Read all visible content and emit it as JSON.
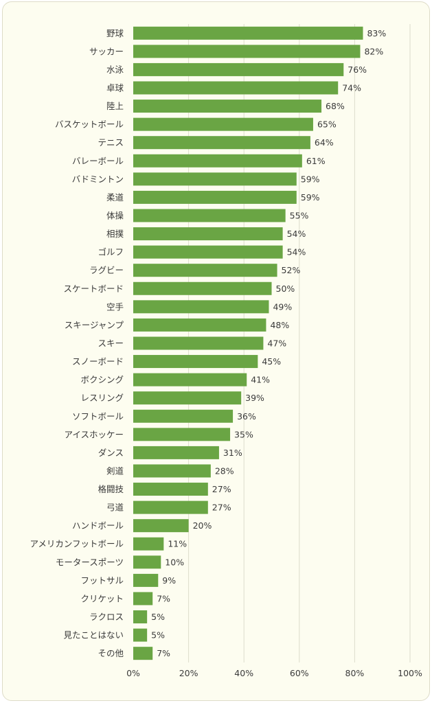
{
  "chart_data": {
    "type": "bar",
    "orientation": "horizontal",
    "title": "",
    "xlabel": "",
    "ylabel": "",
    "categories": [
      "野球",
      "サッカー",
      "水泳",
      "卓球",
      "陸上",
      "バスケットボール",
      "テニス",
      "バレーボール",
      "バドミントン",
      "柔道",
      "体操",
      "相撲",
      "ゴルフ",
      "ラグビー",
      "スケートボード",
      "空手",
      "スキージャンプ",
      "スキー",
      "スノーボード",
      "ボクシング",
      "レスリング",
      "ソフトボール",
      "アイスホッケー",
      "ダンス",
      "剣道",
      "格闘技",
      "弓道",
      "ハンドボール",
      "アメリカンフットボール",
      "モータースポーツ",
      "フットサル",
      "クリケット",
      "ラクロス",
      "見たことはない",
      "その他"
    ],
    "values": [
      83,
      82,
      76,
      74,
      68,
      65,
      64,
      61,
      59,
      59,
      55,
      54,
      54,
      52,
      50,
      49,
      48,
      47,
      45,
      41,
      39,
      36,
      35,
      31,
      28,
      27,
      27,
      20,
      11,
      10,
      9,
      7,
      5,
      5,
      7
    ],
    "value_labels": [
      "83%",
      "82%",
      "76%",
      "74%",
      "68%",
      "65%",
      "64%",
      "61%",
      "59%",
      "59%",
      "55%",
      "54%",
      "54%",
      "52%",
      "50%",
      "49%",
      "48%",
      "47%",
      "45%",
      "41%",
      "39%",
      "36%",
      "35%",
      "31%",
      "28%",
      "27%",
      "27%",
      "20%",
      "11%",
      "10%",
      "9%",
      "7%",
      "5%",
      "5%",
      "7%"
    ],
    "xlim": [
      0,
      100
    ],
    "x_ticks": [
      0,
      20,
      40,
      60,
      80,
      100
    ],
    "x_tick_labels": [
      "0%",
      "20%",
      "40%",
      "60%",
      "80%",
      "100%"
    ],
    "grid": "vertical",
    "legend": "none",
    "bar_color": "#6aa544",
    "background_color": "#fdfdf0"
  }
}
